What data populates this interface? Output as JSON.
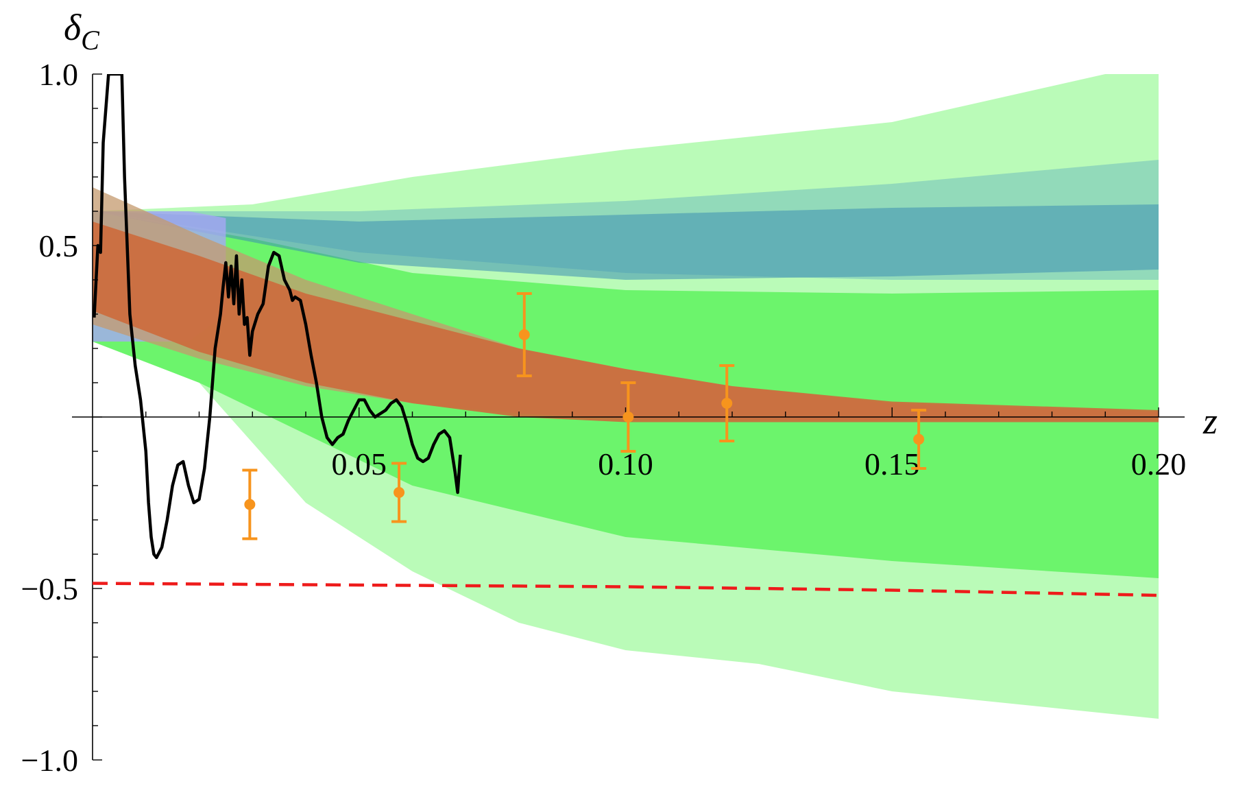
{
  "chart_data": {
    "type": "line",
    "xlabel": "z",
    "ylabel": "δ",
    "ylabel_sub": "C",
    "xlim": [
      0,
      0.2
    ],
    "ylim": [
      -1.0,
      1.0
    ],
    "x_ticks": [
      {
        "value": 0.05,
        "label": "0.05"
      },
      {
        "value": 0.1,
        "label": "0.10"
      },
      {
        "value": 0.15,
        "label": "0.15"
      },
      {
        "value": 0.2,
        "label": "0.20"
      }
    ],
    "y_ticks": [
      {
        "value": 1.0,
        "label": "1.0"
      },
      {
        "value": 0.5,
        "label": "0.5"
      },
      {
        "value": -0.5,
        "label": "−0.5"
      },
      {
        "value": -1.0,
        "label": "−1.0"
      }
    ],
    "grid": false,
    "bands": [
      {
        "color": "#b3fbb0",
        "opacity": 0.9,
        "upper": [
          [
            0,
            0.6
          ],
          [
            0.03,
            0.62
          ],
          [
            0.06,
            0.7
          ],
          [
            0.1,
            0.78
          ],
          [
            0.15,
            0.86
          ],
          [
            0.19,
            1.0
          ],
          [
            0.2,
            1.0
          ]
        ],
        "lower": [
          [
            0,
            0.22
          ],
          [
            0.02,
            0.1
          ],
          [
            0.04,
            -0.25
          ],
          [
            0.06,
            -0.45
          ],
          [
            0.08,
            -0.6
          ],
          [
            0.1,
            -0.68
          ],
          [
            0.125,
            -0.72
          ],
          [
            0.15,
            -0.8
          ],
          [
            0.2,
            -0.88
          ]
        ]
      },
      {
        "color": "#5ef25e",
        "opacity": 0.85,
        "upper": [
          [
            0,
            0.6
          ],
          [
            0.03,
            0.52
          ],
          [
            0.06,
            0.42
          ],
          [
            0.1,
            0.37
          ],
          [
            0.15,
            0.36
          ],
          [
            0.2,
            0.37
          ]
        ],
        "lower": [
          [
            0,
            0.22
          ],
          [
            0.02,
            0.1
          ],
          [
            0.04,
            -0.05
          ],
          [
            0.06,
            -0.2
          ],
          [
            0.1,
            -0.35
          ],
          [
            0.15,
            -0.42
          ],
          [
            0.2,
            -0.47
          ]
        ]
      },
      {
        "color": "#7cc8bb",
        "opacity": 0.65,
        "upper": [
          [
            0,
            0.6
          ],
          [
            0.05,
            0.6
          ],
          [
            0.1,
            0.63
          ],
          [
            0.15,
            0.68
          ],
          [
            0.2,
            0.75
          ]
        ],
        "lower": [
          [
            0,
            0.6
          ],
          [
            0.05,
            0.48
          ],
          [
            0.1,
            0.42
          ],
          [
            0.15,
            0.4
          ],
          [
            0.2,
            0.4
          ]
        ]
      },
      {
        "color": "#3d8fb3",
        "opacity": 0.55,
        "upper": [
          [
            0,
            0.6
          ],
          [
            0.05,
            0.57
          ],
          [
            0.1,
            0.59
          ],
          [
            0.15,
            0.61
          ],
          [
            0.2,
            0.62
          ]
        ],
        "lower": [
          [
            0,
            0.6
          ],
          [
            0.05,
            0.45
          ],
          [
            0.1,
            0.4
          ],
          [
            0.15,
            0.41
          ],
          [
            0.2,
            0.43
          ]
        ]
      },
      {
        "color": "#a6a8f5",
        "opacity": 0.8,
        "upper": [
          [
            0,
            0.6
          ],
          [
            0.018,
            0.6
          ],
          [
            0.025,
            0.58
          ]
        ],
        "lower": [
          [
            0,
            0.22
          ],
          [
            0.018,
            0.22
          ],
          [
            0.025,
            0.3
          ]
        ]
      },
      {
        "color": "#c49a6e",
        "opacity": 0.75,
        "upper": [
          [
            0,
            0.67
          ],
          [
            0.02,
            0.53
          ],
          [
            0.04,
            0.4
          ],
          [
            0.06,
            0.3
          ],
          [
            0.08,
            0.2
          ],
          [
            0.1,
            0.14
          ],
          [
            0.12,
            0.09
          ],
          [
            0.15,
            0.04
          ],
          [
            0.2,
            0.015
          ]
        ],
        "lower": [
          [
            0,
            0.27
          ],
          [
            0.02,
            0.17
          ],
          [
            0.04,
            0.09
          ],
          [
            0.06,
            0.04
          ],
          [
            0.08,
            0.01
          ],
          [
            0.1,
            -0.005
          ],
          [
            0.15,
            -0.01
          ],
          [
            0.2,
            -0.01
          ]
        ]
      },
      {
        "color": "#cd6a3c",
        "opacity": 0.9,
        "upper": [
          [
            0,
            0.57
          ],
          [
            0.02,
            0.47
          ],
          [
            0.04,
            0.36
          ],
          [
            0.06,
            0.28
          ],
          [
            0.08,
            0.2
          ],
          [
            0.1,
            0.14
          ],
          [
            0.12,
            0.09
          ],
          [
            0.15,
            0.045
          ],
          [
            0.2,
            0.02
          ]
        ],
        "lower": [
          [
            0,
            0.31
          ],
          [
            0.02,
            0.19
          ],
          [
            0.04,
            0.1
          ],
          [
            0.06,
            0.04
          ],
          [
            0.08,
            0.0
          ],
          [
            0.1,
            -0.015
          ],
          [
            0.15,
            -0.015
          ],
          [
            0.2,
            -0.015
          ]
        ]
      }
    ],
    "data_line": [
      [
        0.0003,
        0.29
      ],
      [
        0.001,
        0.5
      ],
      [
        0.0015,
        0.48
      ],
      [
        0.002,
        0.8
      ],
      [
        0.003,
        1.0
      ],
      [
        0.0055,
        1.0
      ],
      [
        0.006,
        0.7
      ],
      [
        0.007,
        0.3
      ],
      [
        0.008,
        0.15
      ],
      [
        0.009,
        0.05
      ],
      [
        0.01,
        -0.1
      ],
      [
        0.0105,
        -0.25
      ],
      [
        0.011,
        -0.35
      ],
      [
        0.0115,
        -0.4
      ],
      [
        0.012,
        -0.41
      ],
      [
        0.013,
        -0.38
      ],
      [
        0.014,
        -0.3
      ],
      [
        0.015,
        -0.2
      ],
      [
        0.016,
        -0.14
      ],
      [
        0.017,
        -0.13
      ],
      [
        0.018,
        -0.2
      ],
      [
        0.019,
        -0.25
      ],
      [
        0.02,
        -0.24
      ],
      [
        0.021,
        -0.15
      ],
      [
        0.022,
        0.0
      ],
      [
        0.023,
        0.2
      ],
      [
        0.024,
        0.3
      ],
      [
        0.0245,
        0.38
      ],
      [
        0.025,
        0.45
      ],
      [
        0.0255,
        0.35
      ],
      [
        0.026,
        0.44
      ],
      [
        0.0265,
        0.33
      ],
      [
        0.027,
        0.47
      ],
      [
        0.0275,
        0.3
      ],
      [
        0.028,
        0.4
      ],
      [
        0.0285,
        0.27
      ],
      [
        0.029,
        0.29
      ],
      [
        0.0295,
        0.18
      ],
      [
        0.03,
        0.25
      ],
      [
        0.031,
        0.3
      ],
      [
        0.032,
        0.33
      ],
      [
        0.033,
        0.44
      ],
      [
        0.034,
        0.48
      ],
      [
        0.035,
        0.47
      ],
      [
        0.036,
        0.4
      ],
      [
        0.037,
        0.37
      ],
      [
        0.0375,
        0.34
      ],
      [
        0.038,
        0.35
      ],
      [
        0.039,
        0.34
      ],
      [
        0.04,
        0.27
      ],
      [
        0.041,
        0.18
      ],
      [
        0.042,
        0.1
      ],
      [
        0.043,
        0.0
      ],
      [
        0.044,
        -0.06
      ],
      [
        0.045,
        -0.08
      ],
      [
        0.046,
        -0.06
      ],
      [
        0.047,
        -0.05
      ],
      [
        0.048,
        -0.01
      ],
      [
        0.049,
        0.02
      ],
      [
        0.05,
        0.05
      ],
      [
        0.051,
        0.05
      ],
      [
        0.052,
        0.02
      ],
      [
        0.053,
        0.0
      ],
      [
        0.054,
        0.01
      ],
      [
        0.055,
        0.02
      ],
      [
        0.056,
        0.04
      ],
      [
        0.057,
        0.05
      ],
      [
        0.058,
        0.03
      ],
      [
        0.059,
        -0.02
      ],
      [
        0.06,
        -0.08
      ],
      [
        0.061,
        -0.12
      ],
      [
        0.062,
        -0.13
      ],
      [
        0.063,
        -0.12
      ],
      [
        0.064,
        -0.08
      ],
      [
        0.065,
        -0.05
      ],
      [
        0.066,
        -0.04
      ],
      [
        0.067,
        -0.06
      ],
      [
        0.068,
        -0.16
      ],
      [
        0.0685,
        -0.22
      ],
      [
        0.069,
        -0.11
      ]
    ],
    "dashed_line": [
      [
        0,
        -0.485
      ],
      [
        0.05,
        -0.49
      ],
      [
        0.1,
        -0.495
      ],
      [
        0.15,
        -0.505
      ],
      [
        0.2,
        -0.52
      ]
    ],
    "error_points": [
      {
        "x": 0.0295,
        "y": -0.255,
        "err": 0.1
      },
      {
        "x": 0.0575,
        "y": -0.22,
        "err": 0.085
      },
      {
        "x": 0.081,
        "y": 0.24,
        "err": 0.12
      },
      {
        "x": 0.1005,
        "y": 0.0,
        "err": 0.1
      },
      {
        "x": 0.119,
        "y": 0.04,
        "err": 0.11
      },
      {
        "x": 0.155,
        "y": -0.065,
        "err": 0.085
      }
    ]
  }
}
